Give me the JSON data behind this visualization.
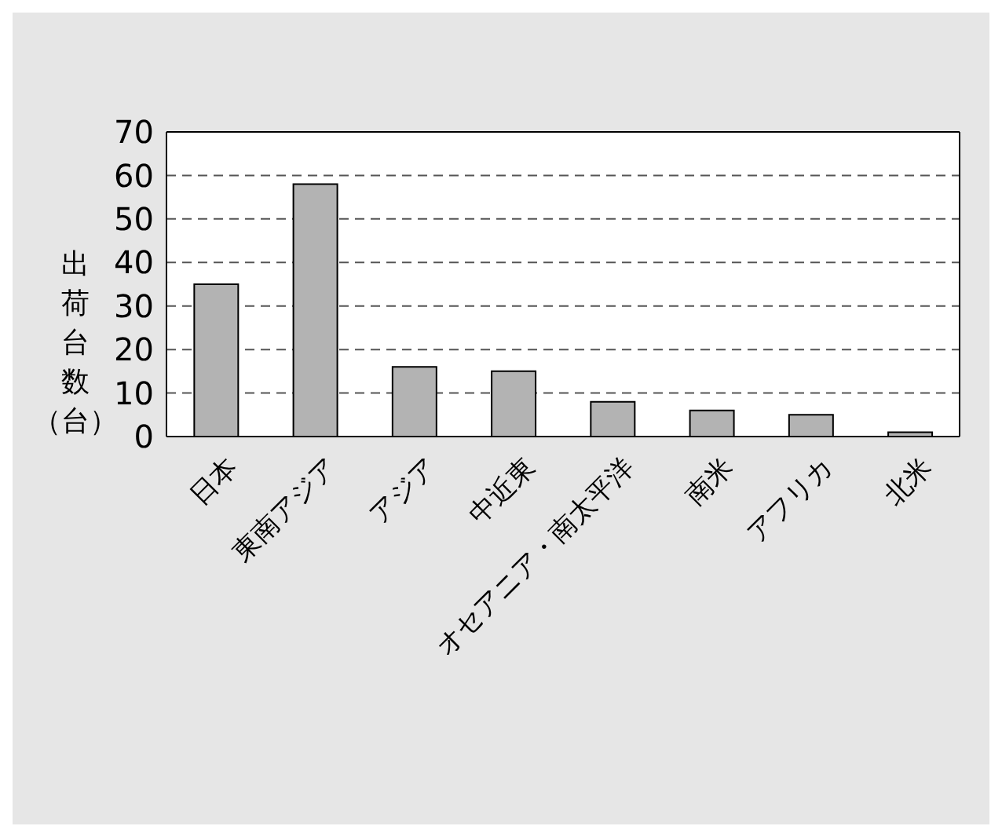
{
  "chart_data": {
    "type": "bar",
    "ylabel": "出荷台数（台）",
    "categories": [
      "日本",
      "東南アジア",
      "アジア",
      "中近東",
      "オセアニア・南太平洋",
      "南米",
      "アフリカ",
      "北米"
    ],
    "values": [
      35,
      58,
      16,
      15,
      8,
      6,
      5,
      1
    ],
    "color": "#b3b3b3",
    "ylim": [
      0,
      70
    ],
    "yticks": [
      0,
      10,
      20,
      30,
      40,
      50,
      60,
      70
    ],
    "grid": "y"
  }
}
